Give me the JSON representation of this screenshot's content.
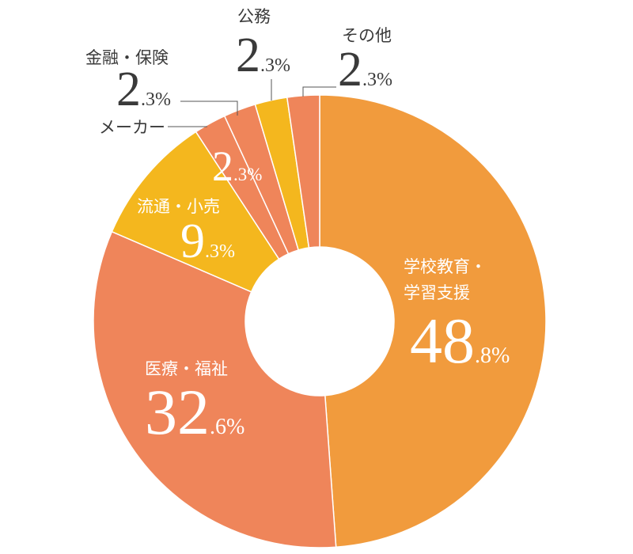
{
  "chart_data": {
    "type": "pie",
    "donut": true,
    "categories": [
      "学校教育・学習支援",
      "医療・福祉",
      "流通・小売",
      "メーカー",
      "金融・保険",
      "公務",
      "その他"
    ],
    "values": [
      48.8,
      32.6,
      9.3,
      2.3,
      2.3,
      2.3,
      2.3
    ],
    "unit": "%",
    "colors": [
      "#F19B3D",
      "#EF855A",
      "#F4B71E",
      "#EF855A",
      "#EF855A",
      "#F4B71E",
      "#EF855A"
    ],
    "text_colors": {
      "inside": "#FFFFFF",
      "outside": "#3A3A3A"
    },
    "separator_color": "#FFFFFF"
  }
}
